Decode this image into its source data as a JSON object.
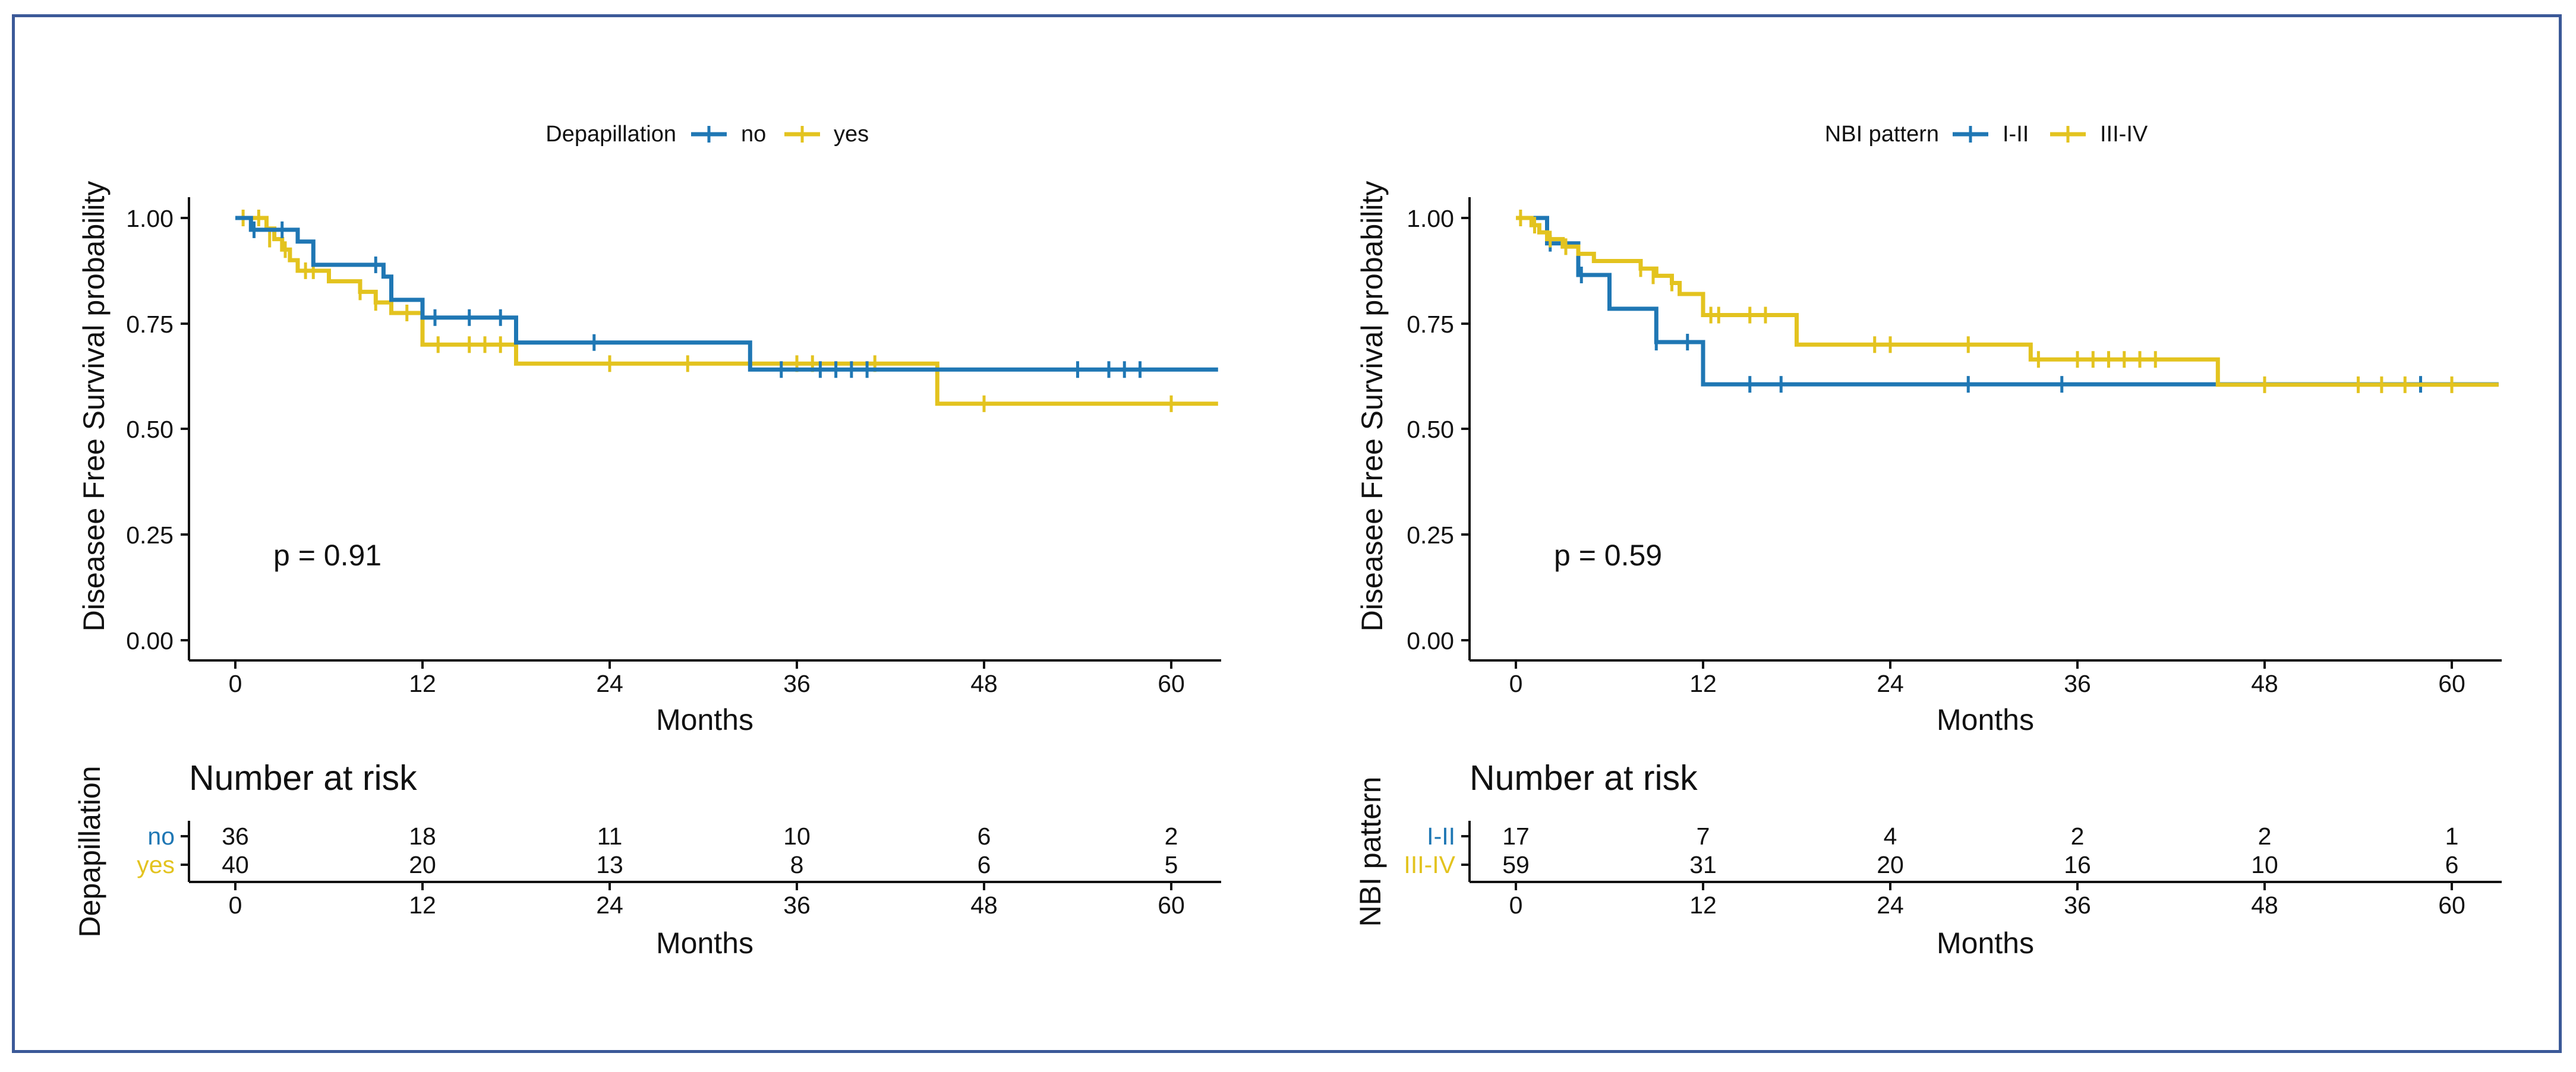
{
  "chart_data": [
    {
      "type": "kaplan-meier",
      "legend_title": "Depapillation",
      "ylabel": "Diseasee Free Survival probability",
      "xlabel": "Months",
      "xlim": [
        -5,
        63
      ],
      "ylim": [
        -0.05,
        1.05
      ],
      "xticks": [
        0,
        12,
        24,
        36,
        48,
        60
      ],
      "yticks": [
        0.0,
        0.25,
        0.5,
        0.75,
        1.0
      ],
      "ytick_labels": [
        "0.00",
        "0.25",
        "0.50",
        "0.75",
        "1.00"
      ],
      "pvalue": "p = 0.91",
      "risk_title": "Number at risk",
      "risk_ylabel": "Depapillation",
      "risk_times": [
        0,
        12,
        24,
        36,
        48,
        60
      ],
      "series": [
        {
          "name": "no",
          "color": "#1f77b4",
          "steps": [
            [
              0,
              1.0
            ],
            [
              1,
              0.972
            ],
            [
              4,
              0.944
            ],
            [
              5,
              0.889
            ],
            [
              9.5,
              0.861
            ],
            [
              10,
              0.806
            ],
            [
              12,
              0.764
            ],
            [
              18,
              0.705
            ],
            [
              33,
              0.641
            ],
            [
              63,
              0.641
            ]
          ],
          "censor": [
            [
              1.2,
              0.972
            ],
            [
              3.0,
              0.972
            ],
            [
              9.0,
              0.889
            ],
            [
              12.8,
              0.764
            ],
            [
              15.0,
              0.764
            ],
            [
              17.0,
              0.764
            ],
            [
              23.0,
              0.705
            ],
            [
              35.0,
              0.641
            ],
            [
              37.5,
              0.641
            ],
            [
              38.5,
              0.641
            ],
            [
              39.5,
              0.641
            ],
            [
              40.5,
              0.641
            ],
            [
              54.0,
              0.641
            ],
            [
              56.0,
              0.641
            ],
            [
              57.0,
              0.641
            ],
            [
              58.0,
              0.641
            ]
          ],
          "at_risk": [
            "36",
            "18",
            "11",
            "10",
            "6",
            "2"
          ]
        },
        {
          "name": "yes",
          "color": "#e3c31f",
          "steps": [
            [
              0,
              1.0
            ],
            [
              2,
              0.975
            ],
            [
              2.5,
              0.95
            ],
            [
              3,
              0.925
            ],
            [
              3.5,
              0.9
            ],
            [
              4,
              0.875
            ],
            [
              6,
              0.85
            ],
            [
              8,
              0.825
            ],
            [
              9,
              0.8
            ],
            [
              10,
              0.775
            ],
            [
              12,
              0.7
            ],
            [
              18,
              0.655
            ],
            [
              45,
              0.56
            ],
            [
              63,
              0.56
            ]
          ],
          "censor": [
            [
              0.5,
              1.0
            ],
            [
              1.5,
              1.0
            ],
            [
              2.2,
              0.95
            ],
            [
              3.2,
              0.925
            ],
            [
              4.5,
              0.875
            ],
            [
              5.0,
              0.875
            ],
            [
              8.0,
              0.825
            ],
            [
              9.0,
              0.8
            ],
            [
              11.0,
              0.775
            ],
            [
              13.0,
              0.7
            ],
            [
              15.0,
              0.7
            ],
            [
              16.0,
              0.7
            ],
            [
              17.0,
              0.7
            ],
            [
              24.0,
              0.655
            ],
            [
              29.0,
              0.655
            ],
            [
              36.0,
              0.655
            ],
            [
              37.0,
              0.655
            ],
            [
              41.0,
              0.655
            ],
            [
              48.0,
              0.56
            ],
            [
              60.0,
              0.56
            ]
          ],
          "at_risk": [
            "40",
            "20",
            "13",
            "8",
            "6",
            "5"
          ]
        }
      ]
    },
    {
      "type": "kaplan-meier",
      "legend_title": "NBI pattern",
      "ylabel": "Diseasee Free Survival probability",
      "xlabel": "Months",
      "xlim": [
        -5,
        63
      ],
      "ylim": [
        -0.05,
        1.05
      ],
      "xticks": [
        0,
        12,
        24,
        36,
        48,
        60
      ],
      "yticks": [
        0.0,
        0.25,
        0.5,
        0.75,
        1.0
      ],
      "ytick_labels": [
        "0.00",
        "0.25",
        "0.50",
        "0.75",
        "1.00"
      ],
      "pvalue": "p = 0.59",
      "risk_title": "Number at risk",
      "risk_ylabel": "NBI pattern",
      "risk_times": [
        0,
        12,
        24,
        36,
        48,
        60
      ],
      "series": [
        {
          "name": "I-II",
          "color": "#1f77b4",
          "steps": [
            [
              0,
              1.0
            ],
            [
              2,
              0.94
            ],
            [
              4,
              0.865
            ],
            [
              6,
              0.785
            ],
            [
              9,
              0.706
            ],
            [
              12,
              0.606
            ],
            [
              63,
              0.606
            ]
          ],
          "censor": [
            [
              2.2,
              0.94
            ],
            [
              4.2,
              0.865
            ],
            [
              9.0,
              0.706
            ],
            [
              11.0,
              0.706
            ],
            [
              15.0,
              0.606
            ],
            [
              17.0,
              0.606
            ],
            [
              29.0,
              0.606
            ],
            [
              35.0,
              0.606
            ],
            [
              58.0,
              0.606
            ]
          ],
          "at_risk": [
            "17",
            "7",
            "4",
            "2",
            "2",
            "1"
          ]
        },
        {
          "name": "III-IV",
          "color": "#e3c31f",
          "steps": [
            [
              0,
              1.0
            ],
            [
              1,
              0.983
            ],
            [
              1.5,
              0.966
            ],
            [
              2,
              0.95
            ],
            [
              3,
              0.932
            ],
            [
              4,
              0.915
            ],
            [
              5,
              0.898
            ],
            [
              8,
              0.88
            ],
            [
              9,
              0.863
            ],
            [
              10,
              0.846
            ],
            [
              10.5,
              0.82
            ],
            [
              12,
              0.77
            ],
            [
              18,
              0.7
            ],
            [
              33,
              0.665
            ],
            [
              45,
              0.605
            ],
            [
              63,
              0.605
            ]
          ],
          "censor": [
            [
              0.3,
              1.0
            ],
            [
              1.2,
              0.983
            ],
            [
              2.2,
              0.95
            ],
            [
              3.2,
              0.932
            ],
            [
              8.0,
              0.88
            ],
            [
              8.8,
              0.863
            ],
            [
              10.0,
              0.846
            ],
            [
              12.5,
              0.77
            ],
            [
              13.0,
              0.77
            ],
            [
              15.0,
              0.77
            ],
            [
              16.0,
              0.77
            ],
            [
              23.0,
              0.7
            ],
            [
              24.0,
              0.7
            ],
            [
              29.0,
              0.7
            ],
            [
              33.5,
              0.665
            ],
            [
              36.0,
              0.665
            ],
            [
              37.0,
              0.665
            ],
            [
              38.0,
              0.665
            ],
            [
              39.0,
              0.665
            ],
            [
              40.0,
              0.665
            ],
            [
              41.0,
              0.665
            ],
            [
              48.0,
              0.605
            ],
            [
              54.0,
              0.605
            ],
            [
              55.5,
              0.605
            ],
            [
              57.0,
              0.605
            ],
            [
              60.0,
              0.605
            ]
          ],
          "at_risk": [
            "59",
            "31",
            "20",
            "16",
            "10",
            "6"
          ]
        }
      ]
    }
  ]
}
